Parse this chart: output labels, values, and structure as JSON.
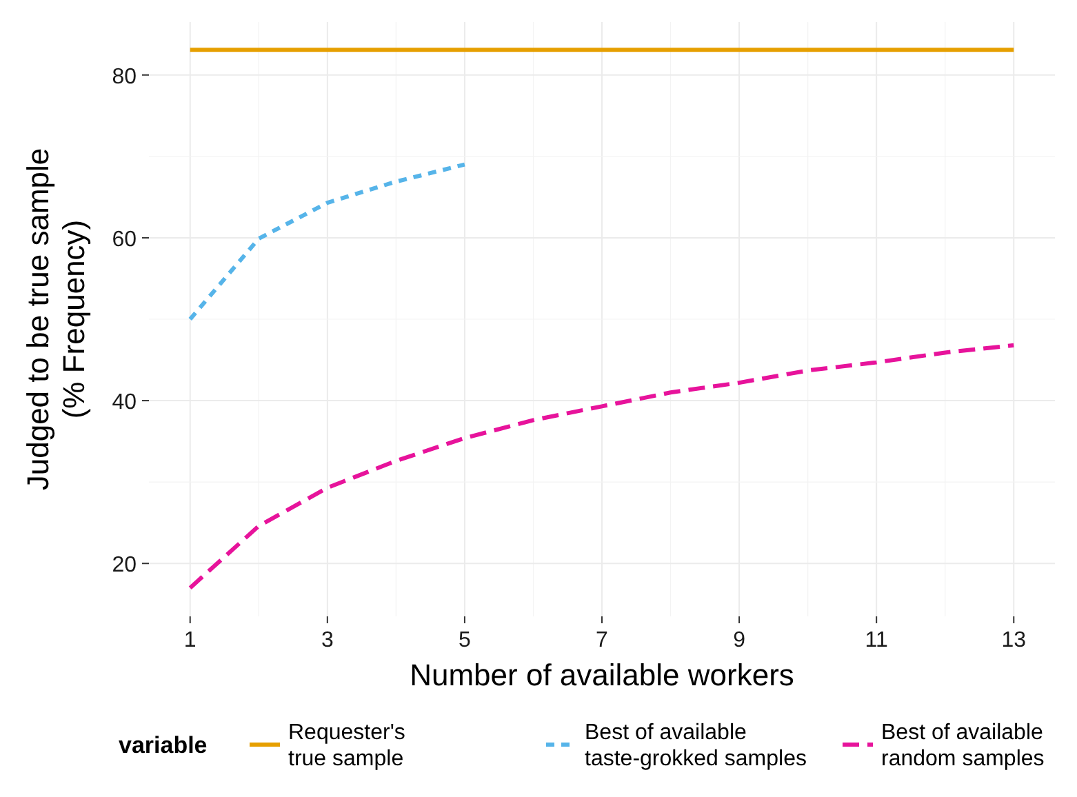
{
  "chart_data": {
    "type": "line",
    "xlabel": "Number of available workers",
    "ylabel": "Judged to be true sample\n(% Frequency)",
    "legend_title": "variable",
    "legend": "bottom",
    "grid": true,
    "xlim": [
      0.4,
      13.6
    ],
    "xticks": [
      1,
      3,
      5,
      7,
      9,
      11,
      13
    ],
    "ylim": [
      13.5,
      86.5
    ],
    "yticks": [
      20,
      40,
      60,
      80
    ],
    "series": [
      {
        "name": "Requester's\ntrue sample",
        "color": "#e69f00",
        "line_style": "solid",
        "x": [
          1,
          13
        ],
        "values": [
          83.1,
          83.1
        ]
      },
      {
        "name": "Best of available\ntaste-grokked samples",
        "color": "#56b4e9",
        "line_style": "dotted",
        "x": [
          1,
          2,
          3,
          4,
          5
        ],
        "values": [
          50.0,
          59.9,
          64.3,
          66.9,
          69.0
        ]
      },
      {
        "name": "Best of available\nrandom samples",
        "color": "#e7139b",
        "line_style": "dashed",
        "x": [
          1,
          2,
          3,
          4,
          5,
          6,
          7,
          8,
          9,
          10,
          11,
          12,
          13
        ],
        "values": [
          17.0,
          24.6,
          29.3,
          32.6,
          35.4,
          37.6,
          39.3,
          41.0,
          42.2,
          43.7,
          44.7,
          45.9,
          46.8
        ]
      }
    ]
  }
}
